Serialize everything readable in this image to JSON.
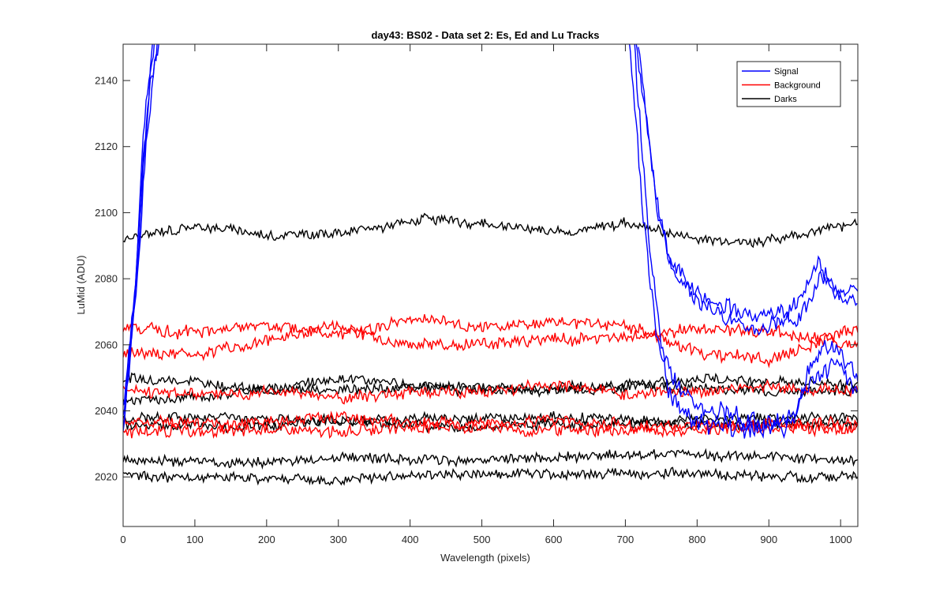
{
  "chart_data": {
    "type": "line",
    "title": "day43: BS02 - Data set 2: Es, Ed and Lu Tracks",
    "xlabel": "Wavelength (pixels)",
    "ylabel": "LuMid (ADU)",
    "xlim": [
      0,
      1024
    ],
    "ylim": [
      2005,
      2151
    ],
    "xticks": [
      0,
      100,
      200,
      300,
      400,
      500,
      600,
      700,
      800,
      900,
      1000
    ],
    "yticks": [
      2020,
      2040,
      2060,
      2080,
      2100,
      2120,
      2140
    ],
    "grid": false,
    "legend_position": "top-right",
    "legend": [
      {
        "label": "Signal",
        "color": "#0000ff"
      },
      {
        "label": "Background",
        "color": "#ff0000"
      },
      {
        "label": "Darks",
        "color": "#000000"
      }
    ],
    "series": [
      {
        "group": "Signal",
        "color": "#0000ff",
        "noise": 5,
        "seed": 11,
        "points": [
          [
            0,
            2034
          ],
          [
            15,
            2070
          ],
          [
            30,
            2130
          ],
          [
            45,
            2152
          ]
        ],
        "points_tail": [
          [
            712,
            2152
          ],
          [
            735,
            2085
          ],
          [
            760,
            2045
          ],
          [
            800,
            2036
          ],
          [
            850,
            2034
          ],
          [
            900,
            2035
          ],
          [
            940,
            2040
          ],
          [
            960,
            2055
          ],
          [
            990,
            2060
          ],
          [
            1024,
            2050
          ]
        ]
      },
      {
        "group": "Signal",
        "color": "#0000ff",
        "noise": 5,
        "seed": 12,
        "points": [
          [
            0,
            2036
          ],
          [
            12,
            2060
          ],
          [
            28,
            2115
          ],
          [
            42,
            2152
          ]
        ],
        "points_tail": [
          [
            705,
            2152
          ],
          [
            725,
            2100
          ],
          [
            745,
            2060
          ],
          [
            780,
            2045
          ],
          [
            830,
            2040
          ],
          [
            880,
            2036
          ],
          [
            930,
            2035
          ],
          [
            960,
            2048
          ],
          [
            990,
            2055
          ],
          [
            1024,
            2046
          ]
        ]
      },
      {
        "group": "Signal",
        "color": "#0000ff",
        "noise": 4,
        "seed": 13,
        "points": [
          [
            0,
            2040
          ],
          [
            20,
            2085
          ],
          [
            35,
            2135
          ],
          [
            50,
            2152
          ]
        ],
        "points_tail": [
          [
            715,
            2152
          ],
          [
            740,
            2110
          ],
          [
            760,
            2085
          ],
          [
            800,
            2076
          ],
          [
            850,
            2070
          ],
          [
            900,
            2068
          ],
          [
            940,
            2072
          ],
          [
            970,
            2085
          ],
          [
            1000,
            2075
          ],
          [
            1024,
            2072
          ]
        ]
      },
      {
        "group": "Signal",
        "color": "#0000ff",
        "noise": 4,
        "seed": 14,
        "points": [
          [
            0,
            2038
          ],
          [
            18,
            2075
          ],
          [
            32,
            2120
          ],
          [
            48,
            2152
          ]
        ],
        "points_tail": [
          [
            718,
            2152
          ],
          [
            745,
            2100
          ],
          [
            770,
            2080
          ],
          [
            810,
            2072
          ],
          [
            860,
            2066
          ],
          [
            905,
            2066
          ],
          [
            945,
            2068
          ],
          [
            972,
            2080
          ],
          [
            1000,
            2075
          ],
          [
            1024,
            2076
          ]
        ]
      },
      {
        "group": "Background",
        "color": "#ff0000",
        "noise": 3,
        "seed": 21,
        "points": [
          [
            0,
            2065
          ],
          [
            100,
            2064
          ],
          [
            200,
            2066
          ],
          [
            300,
            2063
          ],
          [
            420,
            2068
          ],
          [
            500,
            2065
          ],
          [
            620,
            2067
          ],
          [
            700,
            2066
          ],
          [
            800,
            2058
          ],
          [
            900,
            2055
          ],
          [
            1024,
            2065
          ]
        ]
      },
      {
        "group": "Background",
        "color": "#ff0000",
        "noise": 3,
        "seed": 22,
        "points": [
          [
            0,
            2058
          ],
          [
            100,
            2057
          ],
          [
            220,
            2062
          ],
          [
            290,
            2066
          ],
          [
            380,
            2060
          ],
          [
            500,
            2060
          ],
          [
            600,
            2062
          ],
          [
            700,
            2062
          ],
          [
            800,
            2065
          ],
          [
            900,
            2064
          ],
          [
            1024,
            2060
          ]
        ]
      },
      {
        "group": "Background",
        "color": "#ff0000",
        "noise": 3,
        "seed": 23,
        "points": [
          [
            0,
            2046
          ],
          [
            100,
            2045
          ],
          [
            200,
            2046
          ],
          [
            300,
            2044
          ],
          [
            420,
            2046
          ],
          [
            500,
            2046
          ],
          [
            600,
            2048
          ],
          [
            700,
            2045
          ],
          [
            800,
            2046
          ],
          [
            900,
            2047
          ],
          [
            1024,
            2046
          ]
        ]
      },
      {
        "group": "Background",
        "color": "#ff0000",
        "noise": 3,
        "seed": 24,
        "points": [
          [
            0,
            2037
          ],
          [
            150,
            2036
          ],
          [
            300,
            2038
          ],
          [
            450,
            2036
          ],
          [
            600,
            2037
          ],
          [
            750,
            2035
          ],
          [
            900,
            2036
          ],
          [
            1024,
            2036
          ]
        ]
      },
      {
        "group": "Background",
        "color": "#ff0000",
        "noise": 3,
        "seed": 25,
        "points": [
          [
            0,
            2034
          ],
          [
            150,
            2034
          ],
          [
            300,
            2034
          ],
          [
            450,
            2035
          ],
          [
            600,
            2034
          ],
          [
            750,
            2034
          ],
          [
            900,
            2035
          ],
          [
            1024,
            2034
          ]
        ]
      },
      {
        "group": "Darks",
        "color": "#000000",
        "noise": 2.5,
        "seed": 31,
        "points": [
          [
            0,
            2092
          ],
          [
            110,
            2096
          ],
          [
            210,
            2093
          ],
          [
            310,
            2094
          ],
          [
            420,
            2098
          ],
          [
            520,
            2096
          ],
          [
            620,
            2094
          ],
          [
            700,
            2097
          ],
          [
            800,
            2092
          ],
          [
            880,
            2091
          ],
          [
            980,
            2095
          ],
          [
            1024,
            2097
          ]
        ]
      },
      {
        "group": "Darks",
        "color": "#000000",
        "noise": 2.5,
        "seed": 32,
        "points": [
          [
            0,
            2050
          ],
          [
            100,
            2049
          ],
          [
            200,
            2046
          ],
          [
            300,
            2050
          ],
          [
            400,
            2048
          ],
          [
            500,
            2047
          ],
          [
            600,
            2046
          ],
          [
            700,
            2047
          ],
          [
            800,
            2050
          ],
          [
            900,
            2049
          ],
          [
            1024,
            2048
          ]
        ]
      },
      {
        "group": "Darks",
        "color": "#000000",
        "noise": 2.5,
        "seed": 33,
        "points": [
          [
            0,
            2043
          ],
          [
            100,
            2044
          ],
          [
            200,
            2047
          ],
          [
            300,
            2046
          ],
          [
            400,
            2047
          ],
          [
            500,
            2046
          ],
          [
            600,
            2047
          ],
          [
            700,
            2048
          ],
          [
            800,
            2047
          ],
          [
            900,
            2046
          ],
          [
            1024,
            2046
          ]
        ]
      },
      {
        "group": "Darks",
        "color": "#000000",
        "noise": 2.5,
        "seed": 34,
        "points": [
          [
            0,
            2038
          ],
          [
            150,
            2038
          ],
          [
            300,
            2037
          ],
          [
            450,
            2038
          ],
          [
            600,
            2038
          ],
          [
            750,
            2037
          ],
          [
            900,
            2038
          ],
          [
            1024,
            2038
          ]
        ]
      },
      {
        "group": "Darks",
        "color": "#000000",
        "noise": 2.5,
        "seed": 35,
        "points": [
          [
            0,
            2036
          ],
          [
            150,
            2035
          ],
          [
            300,
            2037
          ],
          [
            450,
            2035
          ],
          [
            600,
            2036
          ],
          [
            750,
            2036
          ],
          [
            900,
            2036
          ],
          [
            1024,
            2036
          ]
        ]
      },
      {
        "group": "Darks",
        "color": "#000000",
        "noise": 2.5,
        "seed": 36,
        "points": [
          [
            0,
            2025
          ],
          [
            150,
            2024
          ],
          [
            300,
            2026
          ],
          [
            450,
            2025
          ],
          [
            600,
            2026
          ],
          [
            750,
            2027
          ],
          [
            900,
            2026
          ],
          [
            1024,
            2025
          ]
        ]
      },
      {
        "group": "Darks",
        "color": "#000000",
        "noise": 2.5,
        "seed": 37,
        "points": [
          [
            0,
            2020
          ],
          [
            150,
            2020
          ],
          [
            300,
            2019
          ],
          [
            450,
            2021
          ],
          [
            600,
            2021
          ],
          [
            750,
            2021
          ],
          [
            900,
            2020
          ],
          [
            1024,
            2020
          ]
        ]
      }
    ]
  }
}
